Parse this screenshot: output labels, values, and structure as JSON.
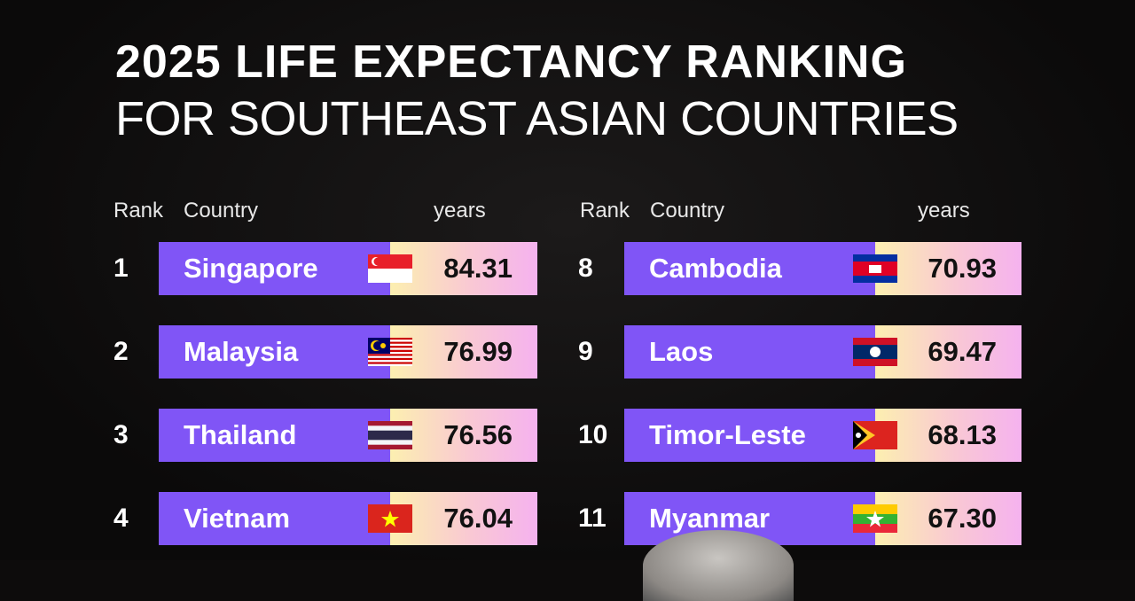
{
  "title_line1": "2025 LIFE EXPECTANCY RANKING",
  "title_line2": "FOR SOUTHEAST ASIAN COUNTRIES",
  "headers": {
    "rank": "Rank",
    "country": "Country",
    "years": "years"
  },
  "colors": {
    "bar": "#8055f6",
    "value_gradient_start": "#fcefb0",
    "value_gradient_end": "#f5b2ef",
    "background": "#0d0c0c"
  },
  "chart_data": {
    "type": "table",
    "title": "2025 LIFE EXPECTANCY RANKING FOR SOUTHEAST ASIAN COUNTRIES",
    "columns": [
      "Rank",
      "Country",
      "years"
    ],
    "rows": [
      {
        "rank": "1",
        "country": "Singapore",
        "years": "84.31",
        "flag": "singapore-flag"
      },
      {
        "rank": "2",
        "country": "Malaysia",
        "years": "76.99",
        "flag": "malaysia-flag"
      },
      {
        "rank": "3",
        "country": "Thailand",
        "years": "76.56",
        "flag": "thailand-flag"
      },
      {
        "rank": "4",
        "country": "Vietnam",
        "years": "76.04",
        "flag": "vietnam-flag"
      },
      {
        "rank": "8",
        "country": "Cambodia",
        "years": "70.93",
        "flag": "cambodia-flag"
      },
      {
        "rank": "9",
        "country": "Laos",
        "years": "69.47",
        "flag": "laos-flag"
      },
      {
        "rank": "10",
        "country": "Timor-Leste",
        "years": "68.13",
        "flag": "timor-leste-flag"
      },
      {
        "rank": "11",
        "country": "Myanmar",
        "years": "67.30",
        "flag": "myanmar-flag"
      }
    ]
  }
}
